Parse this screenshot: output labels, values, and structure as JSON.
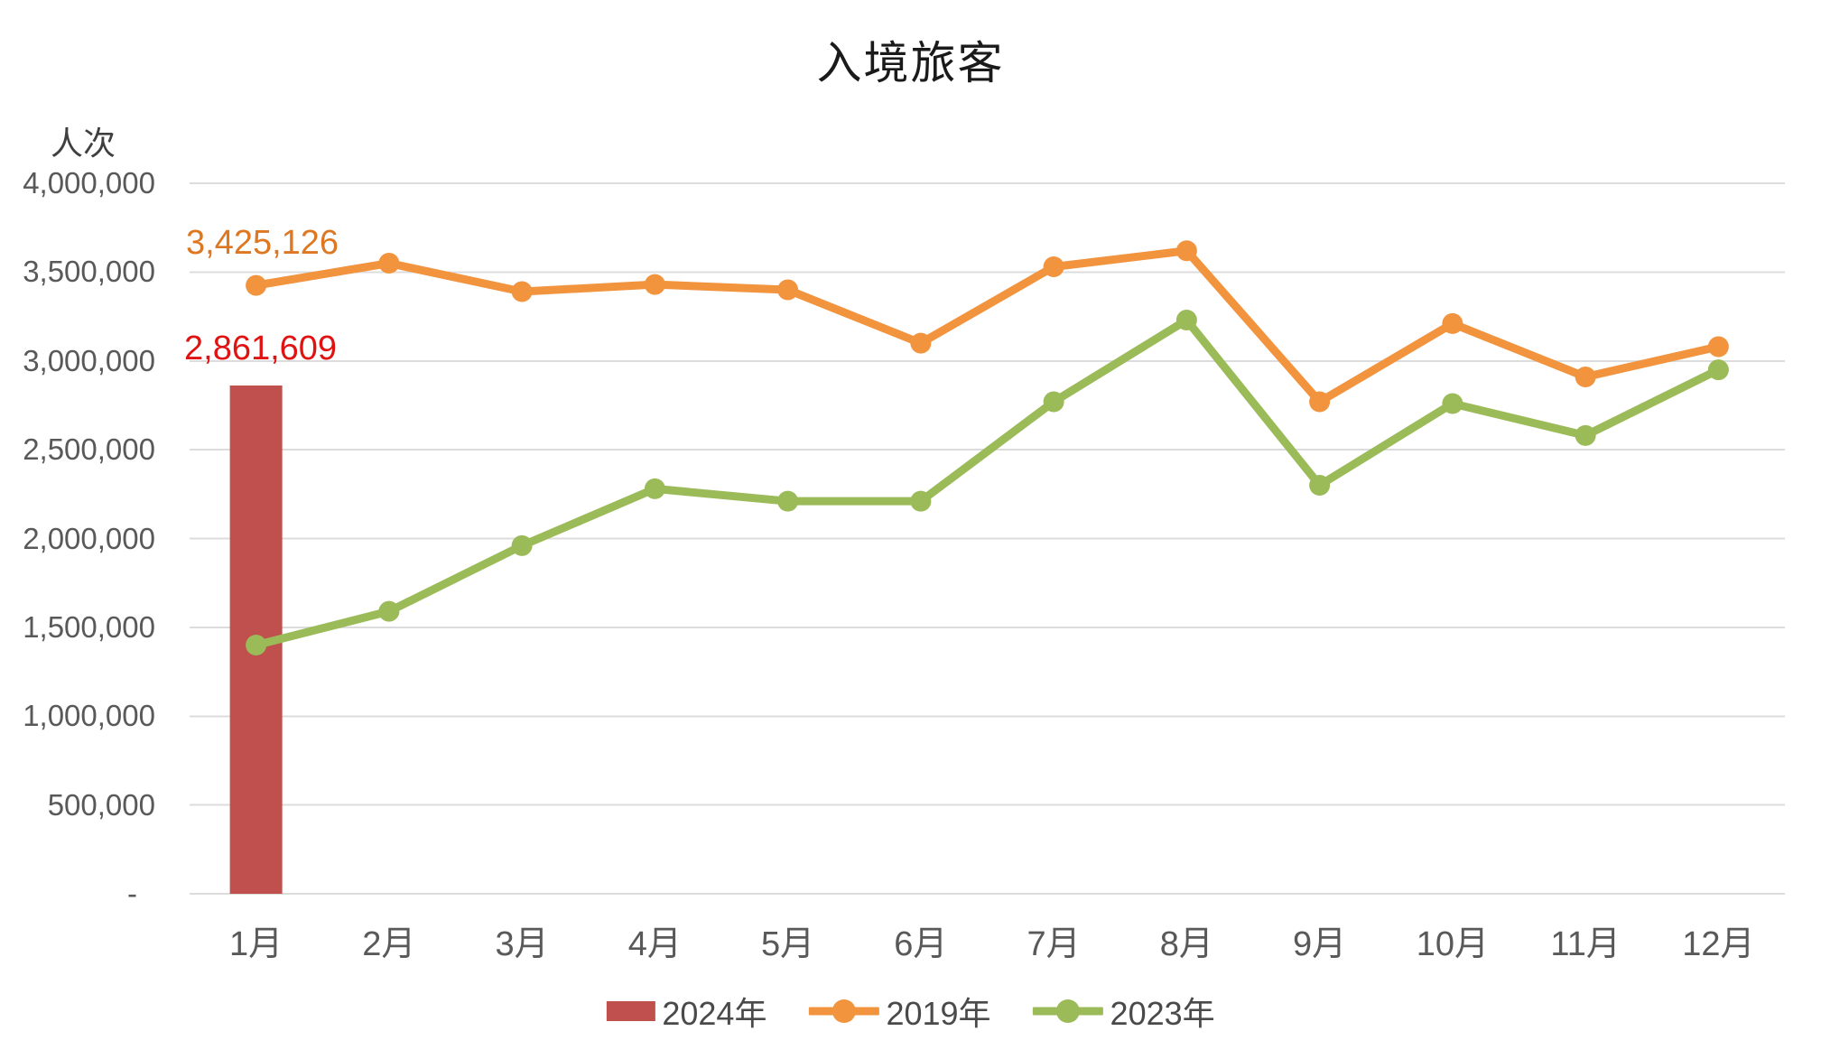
{
  "title": "入境旅客",
  "chart_data": {
    "type": "combo",
    "title": "入境旅客",
    "ylabel": "人次",
    "xlabel": "",
    "categories": [
      "1月",
      "2月",
      "3月",
      "4月",
      "5月",
      "6月",
      "7月",
      "8月",
      "9月",
      "10月",
      "11月",
      "12月"
    ],
    "ylim": [
      0,
      4000000
    ],
    "ytick_interval": 500000,
    "ytick_labels": [
      "4,000,000",
      "3,500,000",
      "3,000,000",
      "2,500,000",
      "2,000,000",
      "1,500,000",
      "1,000,000",
      "500,000",
      "-"
    ],
    "grid": true,
    "legend_position": "bottom",
    "series": [
      {
        "name": "2024年",
        "type": "bar",
        "color": "#C0504D",
        "values": [
          2861609,
          null,
          null,
          null,
          null,
          null,
          null,
          null,
          null,
          null,
          null,
          null
        ],
        "data_label": {
          "text": "2,861,609",
          "color": "#E01212",
          "month": "1月",
          "value": 2861609
        }
      },
      {
        "name": "2019年",
        "type": "line",
        "color": "#F2933E",
        "values": [
          3425126,
          3550000,
          3390000,
          3430000,
          3400000,
          3100000,
          3530000,
          3620000,
          2770000,
          3210000,
          2910000,
          3080000
        ],
        "data_label": {
          "text": "3,425,126",
          "color": "#DE7721",
          "month": "1月",
          "value": 3425126
        }
      },
      {
        "name": "2023年",
        "type": "line",
        "color": "#9BBB59",
        "values": [
          1400000,
          1590000,
          1960000,
          2280000,
          2210000,
          2210000,
          2770000,
          3230000,
          2300000,
          2760000,
          2580000,
          2950000
        ]
      }
    ],
    "colors": {
      "gridline": "#DCDCDC",
      "axis_text": "#595959",
      "title_text": "#1A1A1A",
      "legend_text": "#4A4A4A",
      "bar_2024": "#C0504D",
      "line_2019": "#F2933E",
      "line_2023": "#9BBB59",
      "label_2024": "#E01212",
      "label_2019": "#DE7721"
    }
  }
}
